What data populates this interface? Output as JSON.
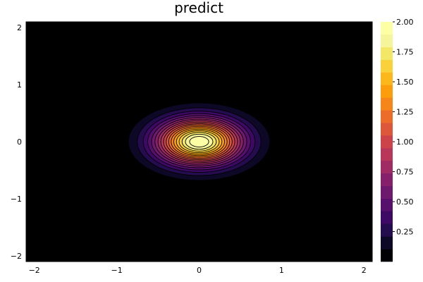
{
  "chart_data": {
    "type": "heatmap",
    "subtype": "filled-contour",
    "title": "predict",
    "xlabel": "",
    "ylabel": "",
    "xlim": [
      -2.1,
      2.1
    ],
    "ylim": [
      -2.1,
      2.1
    ],
    "xticks": [
      -2,
      -1,
      0,
      1,
      2
    ],
    "xtick_labels": [
      "−2",
      "−1",
      "0",
      "1",
      "2"
    ],
    "yticks": [
      -2,
      -1,
      0,
      1,
      2
    ],
    "ytick_labels": [
      "−2",
      "−1",
      "0",
      "1",
      "2"
    ],
    "function": "2*exp(-4*(x^2 + 1.6*y^2))",
    "peak": {
      "x": 0,
      "y": 0,
      "value": 2.0
    },
    "levels": [
      0,
      0.105,
      0.21,
      0.316,
      0.421,
      0.526,
      0.632,
      0.737,
      0.842,
      0.947,
      1.053,
      1.158,
      1.263,
      1.368,
      1.474,
      1.579,
      1.684,
      1.789,
      1.895,
      2.0
    ],
    "colormap": "inferno",
    "colors": [
      "#000004",
      "#0c0826",
      "#240c4f",
      "#3d0965",
      "#560f6d",
      "#6e186e",
      "#87206b",
      "#a02a64",
      "#b7365a",
      "#cc444a",
      "#dd573a",
      "#ec6c2a",
      "#f6851a",
      "#fb9d0c",
      "#fbb71c",
      "#f8d13b",
      "#f2e767",
      "#f6f59c",
      "#fcffa4"
    ],
    "grid": false,
    "colorbar": {
      "min": 0.0,
      "max": 2.0,
      "ticks": [
        0.25,
        0.5,
        0.75,
        1.0,
        1.25,
        1.5,
        1.75,
        2.0
      ],
      "tick_labels": [
        "0.25",
        "0.50",
        "0.75",
        "1.00",
        "1.25",
        "1.50",
        "1.75",
        "2.00"
      ],
      "placement": "right"
    },
    "background": "#000000"
  }
}
